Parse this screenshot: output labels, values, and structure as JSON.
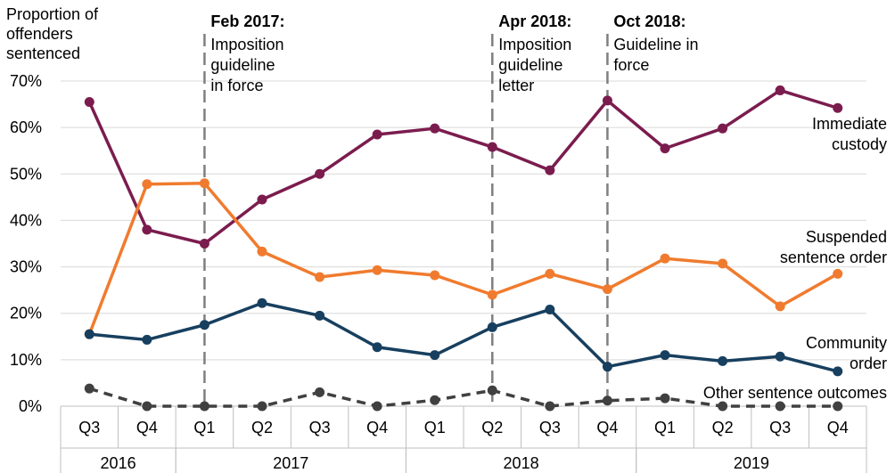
{
  "chart_data": {
    "type": "line",
    "ylabel": "Proportion of offenders sentenced",
    "ylabel_lines": [
      "Proportion of",
      "offenders",
      "sentenced"
    ],
    "ylim": [
      0,
      70
    ],
    "yticks": [
      0,
      10,
      20,
      30,
      40,
      50,
      60,
      70
    ],
    "ytick_labels": [
      "0%",
      "10%",
      "20%",
      "30%",
      "40%",
      "50%",
      "60%",
      "70%"
    ],
    "grid": true,
    "categories": [
      "Q3",
      "Q4",
      "Q1",
      "Q2",
      "Q3",
      "Q4",
      "Q1",
      "Q2",
      "Q3",
      "Q4",
      "Q1",
      "Q2",
      "Q3",
      "Q4"
    ],
    "years": [
      {
        "label": "2016",
        "start": 0,
        "end": 1
      },
      {
        "label": "2017",
        "start": 2,
        "end": 5
      },
      {
        "label": "2018",
        "start": 6,
        "end": 9
      },
      {
        "label": "2019",
        "start": 10,
        "end": 13
      }
    ],
    "series": [
      {
        "name": "Immediate custody",
        "label_lines": [
          "Immediate",
          "custody"
        ],
        "color": "#7b1c4e",
        "dashed": false,
        "values": [
          65.5,
          38,
          35,
          44.5,
          50,
          58.5,
          59.8,
          55.8,
          50.8,
          65.8,
          55.5,
          59.8,
          68,
          64.2
        ]
      },
      {
        "name": "Suspended sentence order",
        "label_lines": [
          "Suspended",
          "sentence order"
        ],
        "color": "#f07b2e",
        "dashed": false,
        "values": [
          15.5,
          47.8,
          48,
          33.3,
          27.8,
          29.3,
          28.2,
          24,
          28.5,
          25.2,
          31.8,
          30.7,
          21.5,
          28.5
        ]
      },
      {
        "name": "Community order",
        "label_lines": [
          "Community",
          "order"
        ],
        "color": "#173f5f",
        "dashed": false,
        "values": [
          15.5,
          14.3,
          17.5,
          22.2,
          19.5,
          12.7,
          11,
          17,
          20.8,
          8.5,
          11,
          9.7,
          10.7,
          7.5
        ]
      },
      {
        "name": "Other sentence outcomes",
        "label_lines": [
          "Other sentence outcomes"
        ],
        "color": "#404040",
        "dashed": true,
        "values": [
          3.8,
          0,
          0,
          0,
          3,
          0,
          1.3,
          3.4,
          0,
          1.2,
          1.7,
          0,
          0,
          0
        ]
      }
    ],
    "annotations": [
      {
        "at_index": 2,
        "title": "Feb 2017:",
        "lines": [
          "Imposition",
          "guideline",
          "in force"
        ]
      },
      {
        "at_index": 7,
        "title": "Apr 2018:",
        "lines": [
          "Imposition",
          "guideline",
          "letter"
        ]
      },
      {
        "at_index": 9,
        "title": "Oct 2018:",
        "lines": [
          "Guideline in",
          "force"
        ]
      }
    ]
  }
}
